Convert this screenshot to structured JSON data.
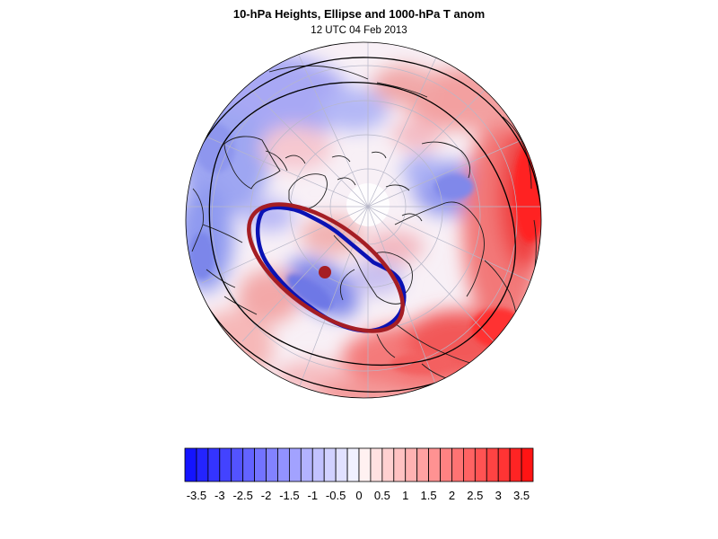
{
  "title": "10-hPa Heights, Ellipse and 1000-hPa T anom",
  "subtitle": "12 UTC 04 Feb 2013",
  "map": {
    "projection": "north-polar-stereographic",
    "features": [
      "temperature-anomaly-shading",
      "coastlines",
      "lat-lon-grid",
      "10-hPa-height-contours",
      "vortex-ellipse",
      "ellipse-center"
    ]
  },
  "colors": {
    "cold_max": "#1414ff",
    "neutral": "#ffffff",
    "warm_max": "#ff1414",
    "vortex_contour": "#0a12b4",
    "ellipse": "#a51e24",
    "height_contour": "#000000",
    "grid": "#b7b7c8",
    "coastline": "#1c1c1c"
  },
  "colorbar": {
    "levels": [
      -3.5,
      -3.25,
      -3,
      -2.75,
      -2.5,
      -2.25,
      -2,
      -1.75,
      -1.5,
      -1.25,
      -1,
      -0.75,
      -0.5,
      -0.25,
      0,
      0.25,
      0.5,
      0.75,
      1,
      1.25,
      1.5,
      1.75,
      2,
      2.25,
      2.5,
      2.75,
      3,
      3.25,
      3.5
    ],
    "tick_labels": [
      "-3.5",
      "-3",
      "-2.5",
      "-2",
      "-1.5",
      "-1",
      "-0.5",
      "0",
      "0.5",
      "1",
      "1.5",
      "2",
      "2.5",
      "3",
      "3.5"
    ]
  }
}
